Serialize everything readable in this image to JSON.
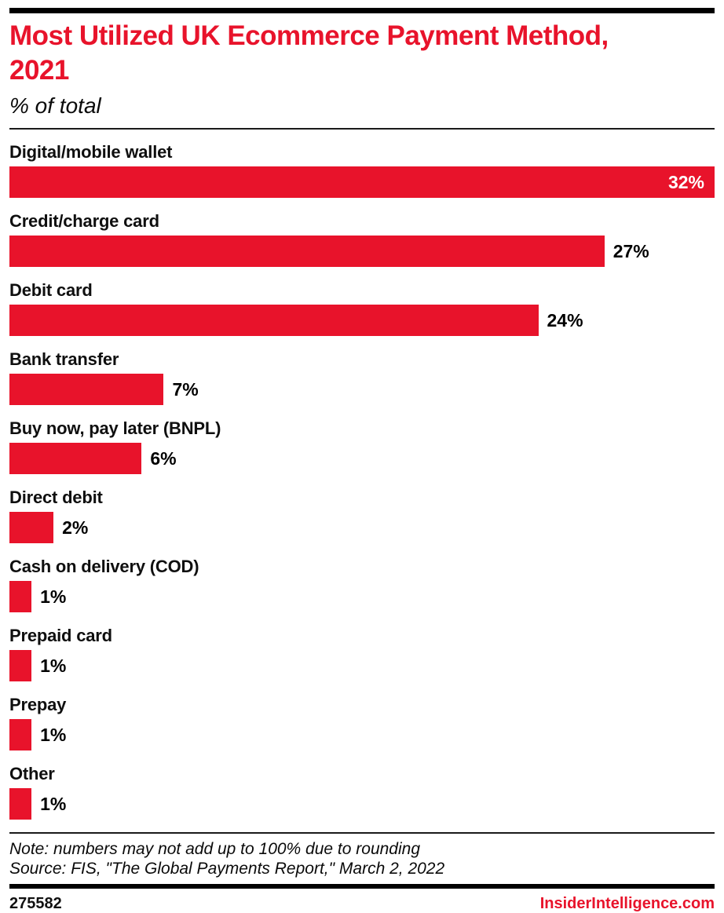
{
  "header": {
    "title": "Most Utilized UK Ecommerce Payment Method,\n2021",
    "subtitle": "% of total"
  },
  "chart_data": {
    "type": "bar",
    "orientation": "horizontal",
    "title": "Most Utilized UK Ecommerce Payment Method, 2021",
    "subtitle": "% of total",
    "categories": [
      "Digital/mobile wallet",
      "Credit/charge card",
      "Debit card",
      "Bank transfer",
      "Buy now, pay later (BNPL)",
      "Direct debit",
      "Cash on delivery (COD)",
      "Prepaid card",
      "Prepay",
      "Other"
    ],
    "values": [
      32,
      27,
      24,
      7,
      6,
      2,
      1,
      1,
      1,
      1
    ],
    "value_labels": [
      "32%",
      "27%",
      "24%",
      "7%",
      "6%",
      "2%",
      "1%",
      "1%",
      "1%",
      "1%"
    ],
    "unit": "%",
    "xlim": [
      0,
      32
    ],
    "grid": false,
    "legend": false,
    "bar_color": "#e8132b",
    "value_label_inside_color": "#ffffff",
    "value_label_outside_color": "#000000"
  },
  "footer": {
    "note": "Note: numbers may not add up to 100% due to rounding",
    "source": "Source: FIS, \"The Global Payments Report,\" March 2, 2022",
    "chart_id": "275582",
    "brand": "InsiderIntelligence.com"
  },
  "colors": {
    "accent_red": "#e8132b",
    "rule_black": "#000000",
    "text_black": "#0a0a0a"
  }
}
